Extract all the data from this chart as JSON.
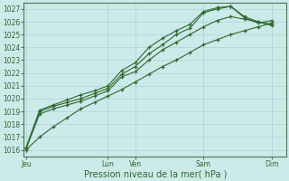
{
  "xlabel": "Pression niveau de la mer( hPa )",
  "bg_color": "#cceaea",
  "grid_color": "#aad4d4",
  "line_color": "#2d6a2d",
  "spine_color": "#4a7a4a",
  "ylim": [
    1015.5,
    1027.5
  ],
  "yticks": [
    1016,
    1017,
    1018,
    1019,
    1020,
    1021,
    1022,
    1023,
    1024,
    1025,
    1026,
    1027
  ],
  "day_labels": [
    "Jeu",
    "Lun",
    "Ven",
    "Sam",
    "Dim"
  ],
  "day_positions": [
    0,
    3.33,
    4.44,
    7.22,
    10.0
  ],
  "xlim": [
    -0.1,
    10.6
  ],
  "x_points": [
    0,
    0.55,
    1.1,
    1.67,
    2.22,
    2.78,
    3.33,
    3.89,
    4.44,
    5.0,
    5.55,
    6.11,
    6.67,
    7.22,
    7.78,
    8.33,
    8.89,
    9.44,
    10.0
  ],
  "series": [
    [
      1016.0,
      1017.0,
      1017.8,
      1018.5,
      1019.2,
      1019.7,
      1020.2,
      1020.7,
      1021.3,
      1021.9,
      1022.5,
      1023.0,
      1023.6,
      1024.2,
      1024.6,
      1025.0,
      1025.3,
      1025.6,
      1025.9
    ],
    [
      1016.1,
      1018.8,
      1019.2,
      1019.5,
      1019.8,
      1020.2,
      1020.6,
      1021.7,
      1022.1,
      1023.0,
      1023.8,
      1024.4,
      1025.0,
      1025.6,
      1026.1,
      1026.4,
      1026.2,
      1026.0,
      1025.8
    ],
    [
      1016.1,
      1019.0,
      1019.4,
      1019.7,
      1020.0,
      1020.4,
      1020.8,
      1021.9,
      1022.5,
      1023.5,
      1024.2,
      1025.0,
      1025.5,
      1026.7,
      1027.0,
      1027.2,
      1026.4,
      1026.0,
      1025.7
    ],
    [
      1016.2,
      1019.1,
      1019.5,
      1019.9,
      1020.3,
      1020.6,
      1021.0,
      1022.2,
      1022.8,
      1024.0,
      1024.7,
      1025.3,
      1025.8,
      1026.8,
      1027.1,
      1027.2,
      1026.3,
      1025.9,
      1026.1
    ]
  ]
}
